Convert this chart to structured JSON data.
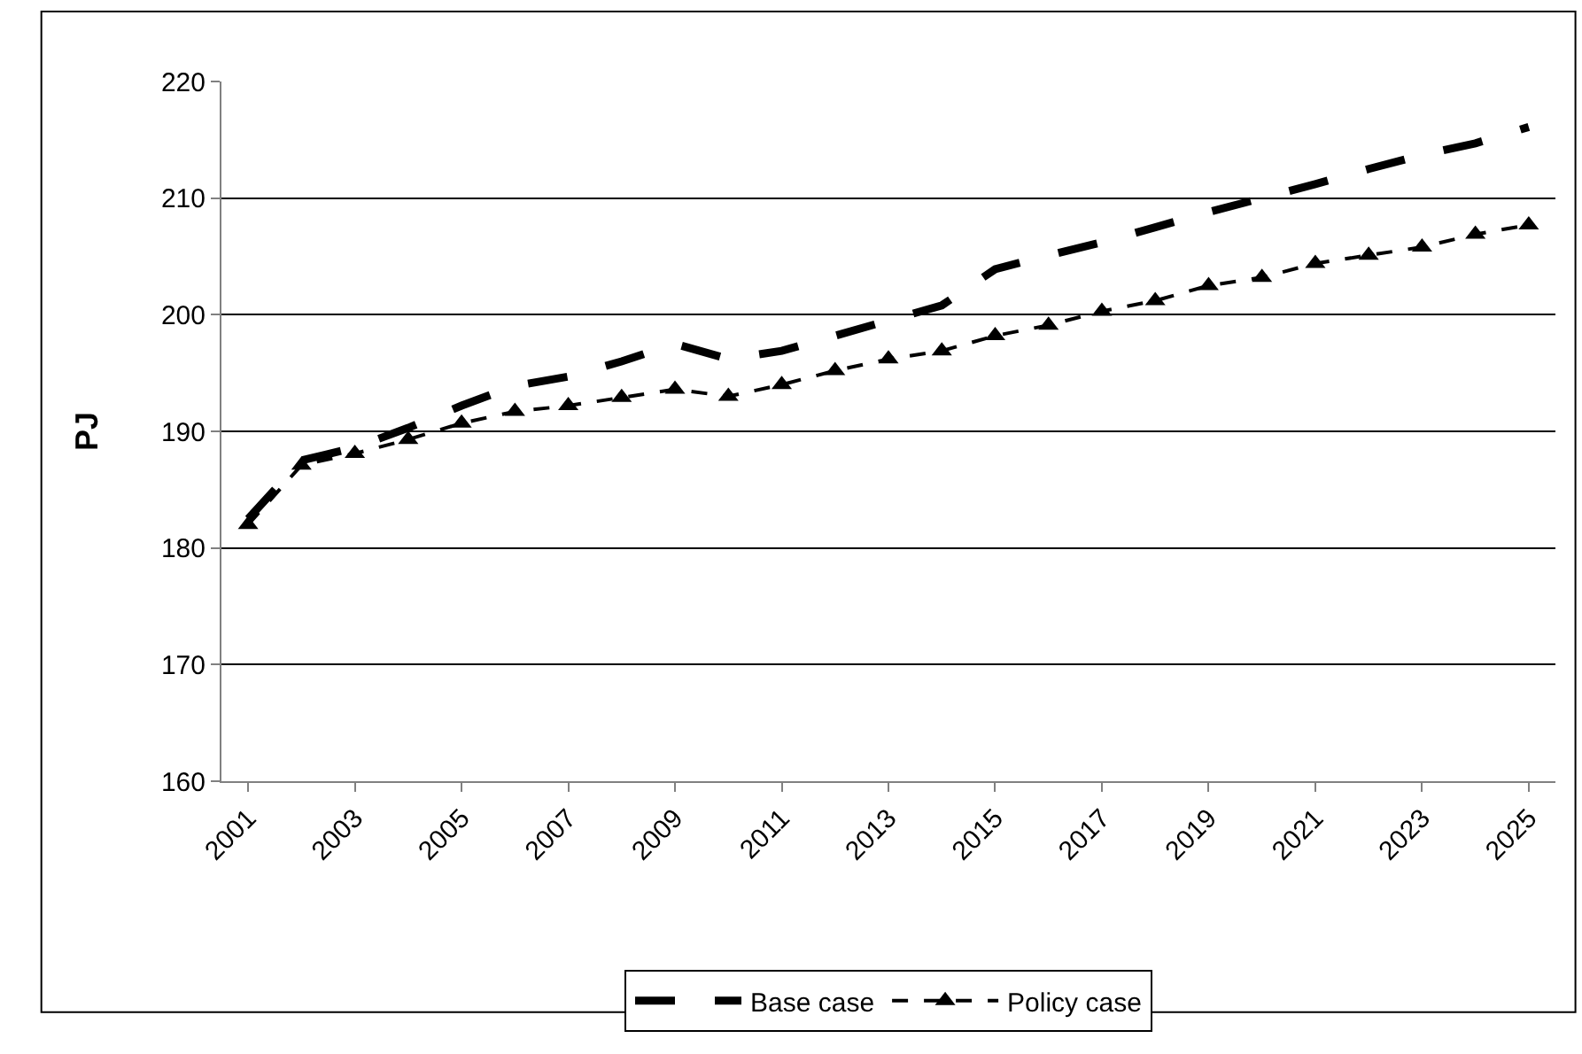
{
  "chart_data": {
    "type": "line",
    "ylabel": "PJ",
    "categories": [
      "2001",
      null,
      "2003",
      null,
      "2005",
      null,
      "2007",
      null,
      "2009",
      null,
      "2011",
      null,
      "2013",
      null,
      "2015",
      null,
      "2017",
      null,
      "2019",
      null,
      "2021",
      null,
      "2023",
      null,
      "2025"
    ],
    "ylim": [
      160,
      220
    ],
    "yticks": [
      160,
      170,
      180,
      190,
      200,
      210,
      220
    ],
    "grid": "y",
    "legend": "bottom",
    "series": [
      {
        "name": "Base case",
        "color": "#000000",
        "line_style": "dashed",
        "marker": "none",
        "values": [
          182.5,
          187.5,
          188.6,
          190.3,
          192.2,
          193.9,
          194.7,
          196.0,
          197.5,
          196.2,
          196.9,
          198.2,
          199.5,
          200.8,
          203.9,
          205.1,
          206.2,
          207.5,
          208.8,
          210.0,
          211.2,
          212.5,
          213.7,
          214.7,
          216.1
        ]
      },
      {
        "name": "Policy case",
        "color": "#000000",
        "line_style": "dashed",
        "marker": "triangle",
        "values": [
          182.0,
          187.1,
          188.1,
          189.3,
          190.7,
          191.7,
          192.2,
          192.9,
          193.6,
          193.0,
          194.0,
          195.2,
          196.2,
          196.9,
          198.2,
          199.1,
          200.3,
          201.2,
          202.5,
          203.2,
          204.4,
          205.1,
          205.8,
          206.9,
          207.7
        ]
      }
    ]
  }
}
